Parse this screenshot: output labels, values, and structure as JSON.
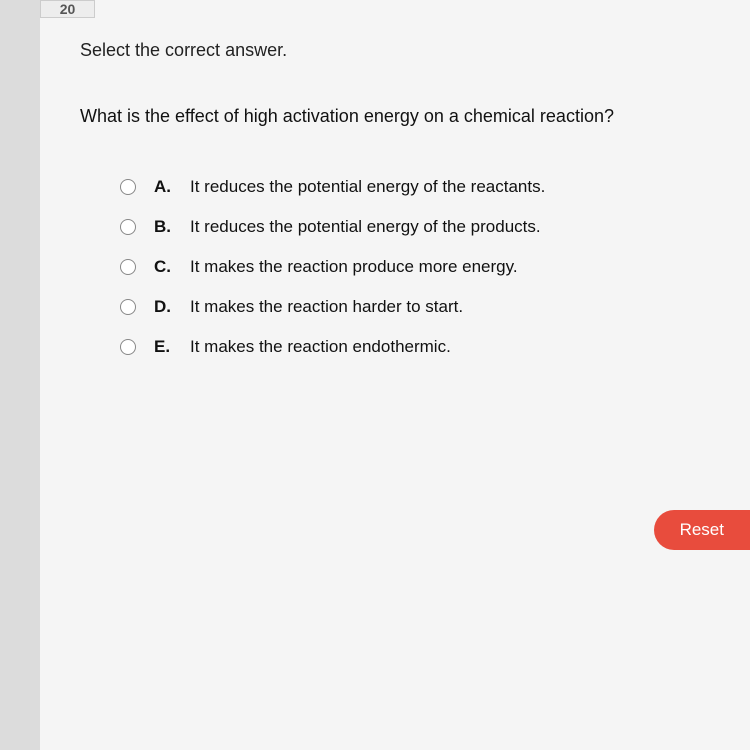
{
  "question_number": "20",
  "instruction": "Select the correct answer.",
  "question": "What is the effect of high activation energy on a chemical reaction?",
  "options": [
    {
      "letter": "A.",
      "text": "It reduces the potential energy of the reactants."
    },
    {
      "letter": "B.",
      "text": "It reduces the potential energy of the products."
    },
    {
      "letter": "C.",
      "text": "It makes the reaction produce more energy."
    },
    {
      "letter": "D.",
      "text": "It makes the reaction harder to start."
    },
    {
      "letter": "E.",
      "text": "It makes the reaction endothermic."
    }
  ],
  "buttons": {
    "reset": "Reset"
  },
  "colors": {
    "reset_bg": "#e84c3d",
    "page_bg": "#f5f5f5",
    "outer_bg": "#e8e8e8"
  }
}
